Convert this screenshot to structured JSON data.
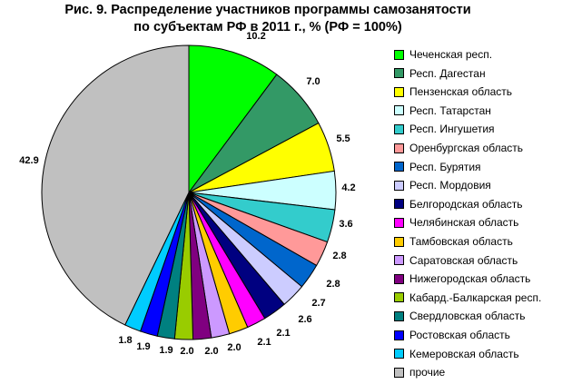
{
  "chart_data": {
    "type": "pie",
    "title": "Рис. 9. Распределение участников программы самозанятости",
    "subtitle": "по субъектам РФ в 2011 г., % (РФ = 100%)",
    "legend_position": "right",
    "slices": [
      {
        "name": "Чеченская респ.",
        "value": 10.2,
        "label": "10.2",
        "color": "#00ff00"
      },
      {
        "name": "Респ. Дагестан",
        "value": 7.0,
        "label": "7.0",
        "color": "#339966"
      },
      {
        "name": "Пензенская область",
        "value": 5.5,
        "label": "5.5",
        "color": "#ffff00"
      },
      {
        "name": "Респ. Татарстан",
        "value": 4.2,
        "label": "4.2",
        "color": "#ccffff"
      },
      {
        "name": "Респ. Ингушетия",
        "value": 3.6,
        "label": "3.6",
        "color": "#33cccc"
      },
      {
        "name": "Оренбургская область",
        "value": 2.8,
        "label": "2.8",
        "color": "#ff9999"
      },
      {
        "name": "Респ. Бурятия",
        "value": 2.8,
        "label": "2.8",
        "color": "#0066cc"
      },
      {
        "name": "Респ. Мордовия",
        "value": 2.7,
        "label": "2.7",
        "color": "#ccccff"
      },
      {
        "name": "Белгородская область",
        "value": 2.6,
        "label": "2.6",
        "color": "#000080"
      },
      {
        "name": "Челябинская область",
        "value": 2.1,
        "label": "2.1",
        "color": "#ff00ff"
      },
      {
        "name": "Тамбовская область",
        "value": 2.1,
        "label": "2.1",
        "color": "#ffcc00"
      },
      {
        "name": "Саратовская область",
        "value": 2.0,
        "label": "2.0",
        "color": "#cc99ff"
      },
      {
        "name": "Нижегородская область",
        "value": 2.0,
        "label": "2.0",
        "color": "#800080"
      },
      {
        "name": "Кабард.-Балкарская респ.",
        "value": 2.0,
        "label": "2.0",
        "color": "#99cc00"
      },
      {
        "name": "Свердловская область",
        "value": 1.9,
        "label": "1.9",
        "color": "#008080"
      },
      {
        "name": "Ростовская область",
        "value": 1.9,
        "label": "1.9",
        "color": "#0000ff"
      },
      {
        "name": "Кемеровская область",
        "value": 1.8,
        "label": "1.8",
        "color": "#00ccff"
      },
      {
        "name": "прочие",
        "value": 42.9,
        "label": "42.9",
        "color": "#c0c0c0"
      }
    ]
  }
}
